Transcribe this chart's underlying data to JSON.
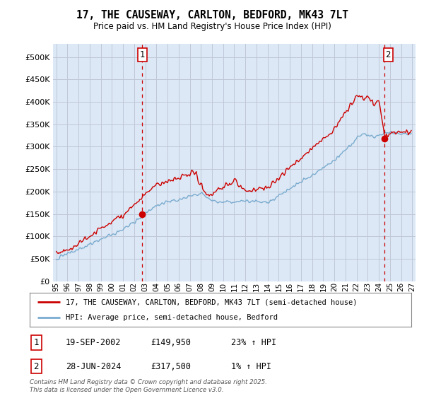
{
  "title": "17, THE CAUSEWAY, CARLTON, BEDFORD, MK43 7LT",
  "subtitle": "Price paid vs. HM Land Registry's House Price Index (HPI)",
  "legend_line1": "17, THE CAUSEWAY, CARLTON, BEDFORD, MK43 7LT (semi-detached house)",
  "legend_line2": "HPI: Average price, semi-detached house, Bedford",
  "annotation1_date": "19-SEP-2002",
  "annotation1_price": "£149,950",
  "annotation1_hpi": "23% ↑ HPI",
  "annotation2_date": "28-JUN-2024",
  "annotation2_price": "£317,500",
  "annotation2_hpi": "1% ↑ HPI",
  "footer": "Contains HM Land Registry data © Crown copyright and database right 2025.\nThis data is licensed under the Open Government Licence v3.0.",
  "line_color_red": "#cc0000",
  "line_color_blue": "#7aabcf",
  "vline_color": "#cc0000",
  "grid_color": "#c0c8d8",
  "plot_bg": "#dce8f5",
  "bg_color": "#ffffff",
  "ylim": [
    0,
    530000
  ],
  "yticks": [
    0,
    50000,
    100000,
    150000,
    200000,
    250000,
    300000,
    350000,
    400000,
    450000,
    500000
  ],
  "sale1_year": 2002.72,
  "sale1_price": 149950,
  "sale2_year": 2024.49,
  "sale2_price": 317500
}
